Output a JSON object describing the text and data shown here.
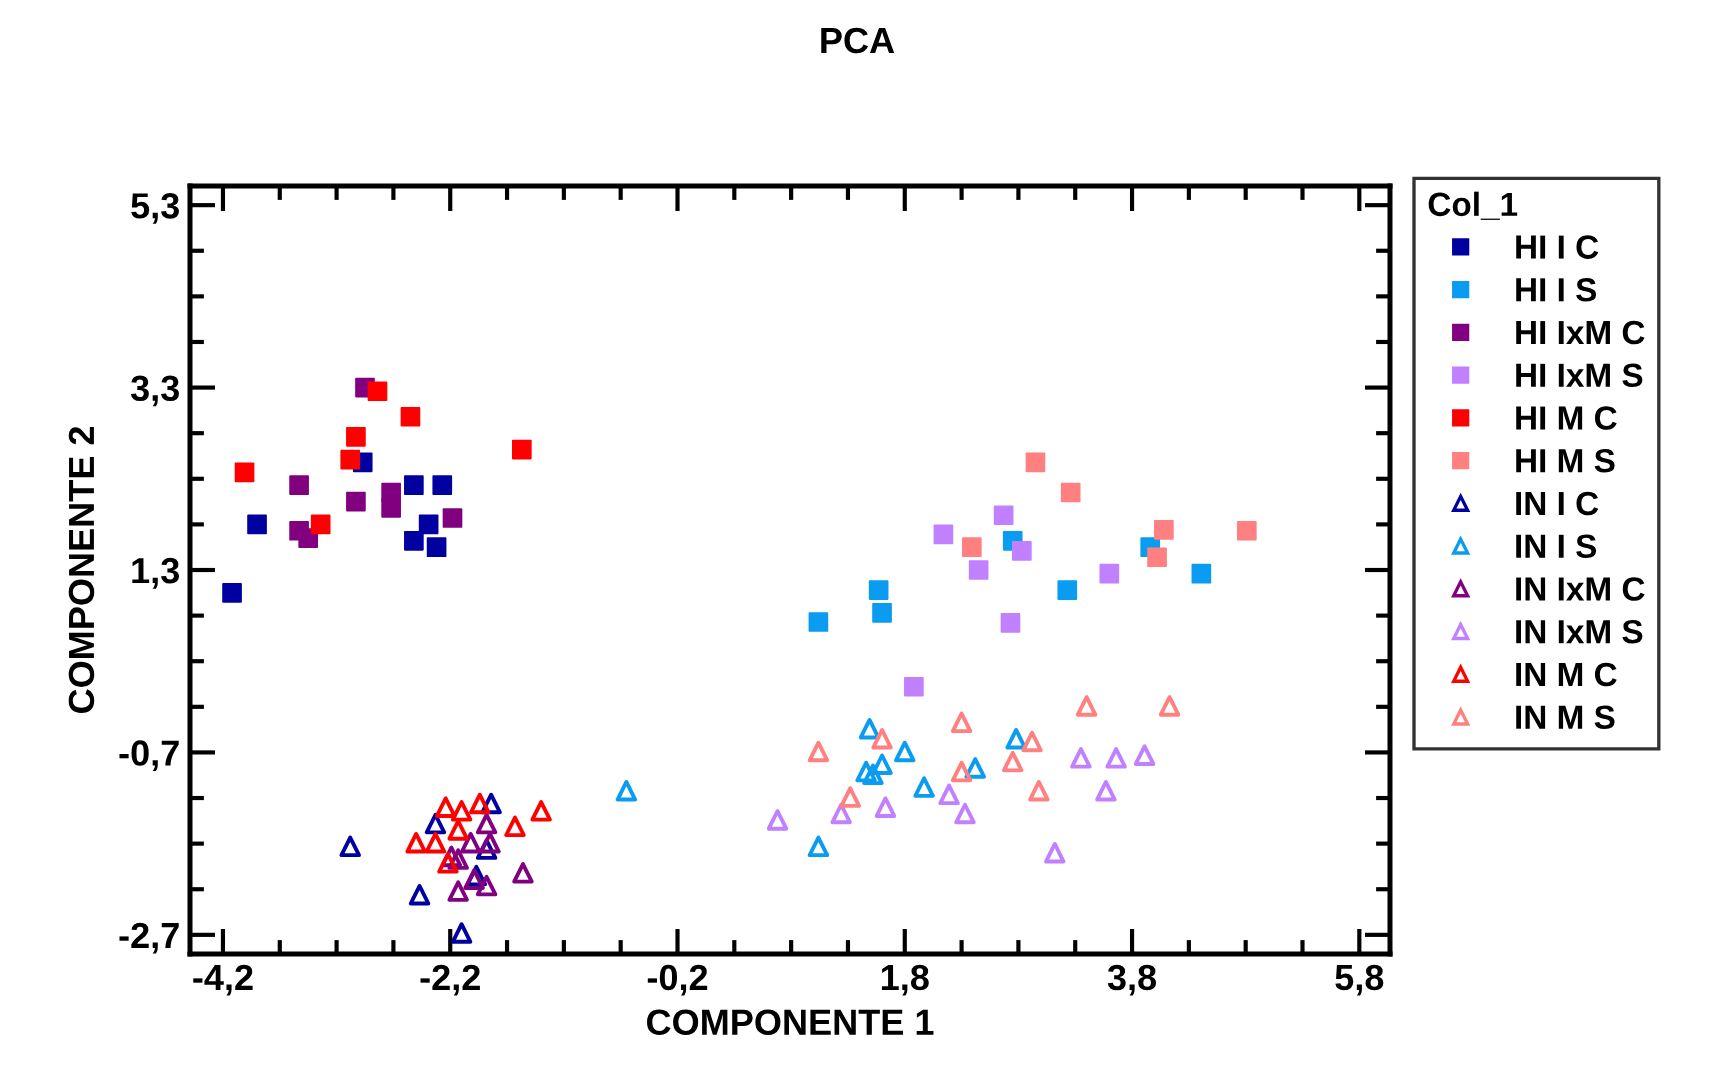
{
  "chart_data": {
    "type": "scatter",
    "title": "PCA",
    "xlabel": "COMPONENTE 1",
    "ylabel": "COMPONENTE 2",
    "legend_title": "Col_1",
    "legend": "right",
    "grid": false,
    "xlim": [
      -4.49,
      6.07
    ],
    "ylim": [
      -2.91,
      5.51
    ],
    "xticks": [
      {
        "value": -4.2,
        "label": "-4,2"
      },
      {
        "value": -3.7,
        "label": null
      },
      {
        "value": -3.2,
        "label": null
      },
      {
        "value": -2.7,
        "label": null
      },
      {
        "value": -2.2,
        "label": "-2,2"
      },
      {
        "value": -1.7,
        "label": null
      },
      {
        "value": -1.2,
        "label": null
      },
      {
        "value": -0.7,
        "label": null
      },
      {
        "value": -0.2,
        "label": "-0,2"
      },
      {
        "value": 0.3,
        "label": null
      },
      {
        "value": 0.8,
        "label": null
      },
      {
        "value": 1.3,
        "label": null
      },
      {
        "value": 1.8,
        "label": "1,8"
      },
      {
        "value": 2.3,
        "label": null
      },
      {
        "value": 2.8,
        "label": null
      },
      {
        "value": 3.3,
        "label": null
      },
      {
        "value": 3.8,
        "label": "3,8"
      },
      {
        "value": 4.3,
        "label": null
      },
      {
        "value": 4.8,
        "label": null
      },
      {
        "value": 5.3,
        "label": null
      },
      {
        "value": 5.8,
        "label": "5,8"
      }
    ],
    "yticks": [
      {
        "value": -2.7,
        "label": "-2,7"
      },
      {
        "value": -2.2,
        "label": null
      },
      {
        "value": -1.7,
        "label": null
      },
      {
        "value": -1.2,
        "label": null
      },
      {
        "value": -0.7,
        "label": "-0,7"
      },
      {
        "value": -0.2,
        "label": null
      },
      {
        "value": 0.3,
        "label": null
      },
      {
        "value": 0.8,
        "label": null
      },
      {
        "value": 1.3,
        "label": "1,3"
      },
      {
        "value": 1.8,
        "label": null
      },
      {
        "value": 2.3,
        "label": null
      },
      {
        "value": 2.8,
        "label": null
      },
      {
        "value": 3.3,
        "label": "3,3"
      },
      {
        "value": 3.8,
        "label": null
      },
      {
        "value": 4.3,
        "label": null
      },
      {
        "value": 4.8,
        "label": null
      },
      {
        "value": 5.3,
        "label": "5,3"
      }
    ],
    "series": [
      {
        "name": "HI I C",
        "color": "#0000a0",
        "marker": "square",
        "x": [
          -2.97,
          -2.52,
          -2.27,
          -3.9,
          -2.39,
          -2.52,
          -2.32,
          -4.12
        ],
        "values": [
          2.48,
          2.23,
          2.23,
          1.8,
          1.8,
          1.62,
          1.55,
          1.05
        ]
      },
      {
        "name": "HI I S",
        "color": "#0a9cf0",
        "marker": "square",
        "x": [
          1.04,
          1.57,
          1.6,
          2.75,
          3.23,
          3.96,
          4.41
        ],
        "values": [
          0.73,
          1.08,
          0.83,
          1.62,
          1.08,
          1.55,
          1.26
        ]
      },
      {
        "name": "HI IxM C",
        "color": "#800080",
        "marker": "square",
        "x": [
          -2.95,
          -3.53,
          -3.03,
          -2.72,
          -2.72,
          -3.53,
          -3.45,
          -2.18
        ],
        "values": [
          3.3,
          2.23,
          2.05,
          2.15,
          1.98,
          1.73,
          1.65,
          1.87
        ]
      },
      {
        "name": "HI IxM S",
        "color": "#c080ff",
        "marker": "square",
        "x": [
          2.14,
          2.67,
          2.83,
          2.45,
          3.6,
          2.73,
          1.88
        ],
        "values": [
          1.69,
          1.9,
          1.51,
          1.3,
          1.26,
          0.72,
          0.02
        ]
      },
      {
        "name": "HI M C",
        "color": "#ff0000",
        "marker": "square",
        "x": [
          -2.84,
          -2.55,
          -3.03,
          -3.08,
          -4.01,
          -3.34,
          -1.57
        ],
        "values": [
          3.26,
          2.98,
          2.76,
          2.51,
          2.37,
          1.8,
          2.62
        ]
      },
      {
        "name": "HI M S",
        "color": "#ff8080",
        "marker": "square",
        "x": [
          2.95,
          3.26,
          4.08,
          2.39,
          4.02,
          4.81
        ],
        "values": [
          2.48,
          2.15,
          1.74,
          1.55,
          1.44,
          1.73
        ]
      },
      {
        "name": "IN I C",
        "color": "#0000a0",
        "marker": "triangle",
        "x": [
          -1.84,
          -2.33,
          -3.08,
          -2.02,
          -1.88,
          -2.47,
          -1.97,
          -2.1
        ],
        "values": [
          -1.26,
          -1.48,
          -1.73,
          null,
          -1.76,
          -2.26,
          -2.05,
          -2.68
        ]
      },
      {
        "name": "IN I S",
        "color": "#0a9cf0",
        "marker": "triangle",
        "x": [
          -0.65,
          1.49,
          1.8,
          1.6,
          1.46,
          1.52,
          1.97,
          2.42,
          2.78,
          1.04
        ],
        "values": [
          -1.12,
          -0.44,
          -0.69,
          -0.83,
          -0.91,
          -0.94,
          -1.08,
          -0.87,
          -0.55,
          -1.73
        ]
      },
      {
        "name": "IN IxM C",
        "color": "#800080",
        "marker": "triangle",
        "x": [
          -1.88,
          -2.02,
          -1.85,
          -2.19,
          -2.13,
          -1.56,
          -1.99,
          -1.88,
          -2.13
        ],
        "values": [
          -1.48,
          -1.69,
          -1.69,
          -1.84,
          -1.87,
          -2.02,
          -2.09,
          -2.16,
          -2.22
        ]
      },
      {
        "name": "IN IxM S",
        "color": "#c080ff",
        "marker": "triangle",
        "x": [
          0.68,
          1.24,
          1.63,
          2.19,
          2.33,
          3.12,
          3.35,
          3.66,
          3.91,
          3.57
        ],
        "values": [
          -1.44,
          -1.37,
          -1.3,
          -1.16,
          -1.37,
          -1.8,
          -0.76,
          -0.76,
          -0.73,
          -1.12
        ]
      },
      {
        "name": "IN M C",
        "color": "#ff0000",
        "marker": "triangle",
        "x": [
          -2.24,
          -2.1,
          -1.94,
          -1.63,
          -1.4,
          -2.5,
          -2.33,
          -2.13,
          -2.22
        ],
        "values": [
          -1.3,
          -1.34,
          -1.26,
          -1.51,
          -1.34,
          -1.69,
          -1.69,
          -1.55,
          -1.91
        ]
      },
      {
        "name": "IN M S",
        "color": "#ff8080",
        "marker": "triangle",
        "x": [
          1.04,
          1.6,
          1.32,
          2.3,
          2.3,
          2.75,
          2.92,
          2.98,
          3.4,
          4.13
        ],
        "values": [
          -0.69,
          -0.55,
          -1.19,
          -0.37,
          -0.91,
          -0.8,
          -0.58,
          -1.12,
          -0.19,
          -0.19
        ]
      }
    ]
  }
}
